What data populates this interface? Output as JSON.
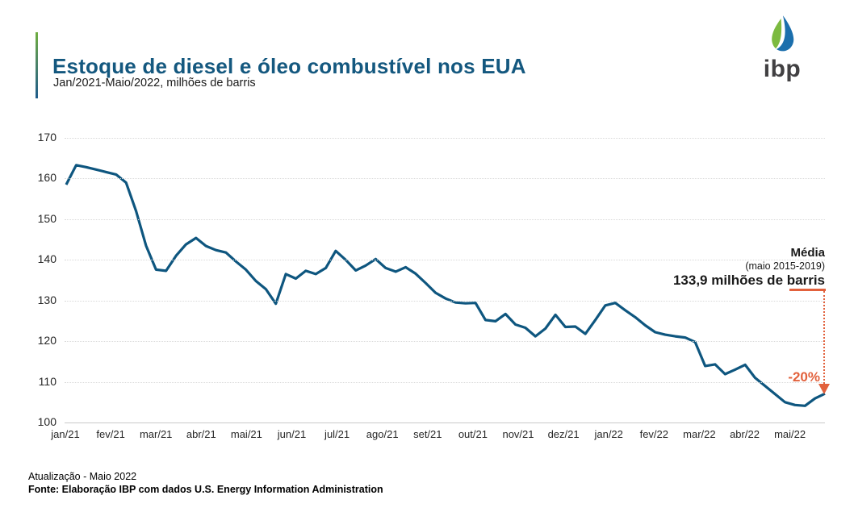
{
  "header": {
    "title": "Estoque de diesel e óleo combustível nos EUA",
    "subtitle": "Jan/2021-Maio/2022, milhões de barris",
    "logo_text": "ibp"
  },
  "chart_data": {
    "type": "line",
    "title": "Estoque de diesel e óleo combustível nos EUA",
    "subtitle": "Jan/2021-Maio/2022, milhões de barris",
    "xlabel": "",
    "ylabel": "milhões de barris",
    "ylim": [
      100,
      170
    ],
    "y_ticks": [
      100,
      110,
      120,
      130,
      140,
      150,
      160,
      170
    ],
    "grid": "horizontal-dotted",
    "legend_position": "none",
    "x_tick_labels": [
      "jan/21",
      "fev/21",
      "mar/21",
      "abr/21",
      "mai/21",
      "jun/21",
      "jul/21",
      "ago/21",
      "set/21",
      "out/21",
      "nov/21",
      "dez/21",
      "jan/22",
      "fev/22",
      "mar/22",
      "abr/22",
      "mai/22"
    ],
    "series": [
      {
        "name": "Estoque de diesel e óleo combustível nos EUA (semanal)",
        "values": [
          158.5,
          163.3,
          162.8,
          162.2,
          161.6,
          161.0,
          159.0,
          152.0,
          143.5,
          137.6,
          137.3,
          141.0,
          143.8,
          145.4,
          143.4,
          142.4,
          141.8,
          139.6,
          137.6,
          134.8,
          132.8,
          129.2,
          136.5,
          135.4,
          137.3,
          136.5,
          138.0,
          142.2,
          140.0,
          137.4,
          138.6,
          140.2,
          138.0,
          137.1,
          138.2,
          136.6,
          134.3,
          131.9,
          130.5,
          129.5,
          129.3,
          129.4,
          125.2,
          124.9,
          126.7,
          124.1,
          123.3,
          121.2,
          123.1,
          126.5,
          123.5,
          123.6,
          121.8,
          125.2,
          128.8,
          129.4,
          127.6,
          125.9,
          123.9,
          122.2,
          121.6,
          121.2,
          120.9,
          119.8,
          113.9,
          114.3,
          111.9,
          113.0,
          114.2,
          111.0,
          109.0,
          107.0,
          105.0,
          104.3,
          104.1,
          105.9,
          107.1
        ]
      }
    ],
    "annotation": {
      "label": "Média",
      "sublabel": "(maio 2015-2019)",
      "value_label": "133,9 milhões de barris",
      "reference_value": 133.9,
      "change_label": "-20%"
    }
  },
  "footer": {
    "update": "Atualização - Maio 2022",
    "source": "Fonte: Elaboração IBP com dados U.S. Energy Information Administration"
  },
  "colors": {
    "line": "#0E567F",
    "title": "#14587F",
    "accent_orange": "#E2613C",
    "accent_green": "#6FAE3F",
    "accent_blue": "#1F5C8B",
    "grid": "#D9D9D9",
    "logo_gray": "#414042",
    "logo_blue": "#1B6FAD",
    "logo_green": "#7CBA40"
  }
}
